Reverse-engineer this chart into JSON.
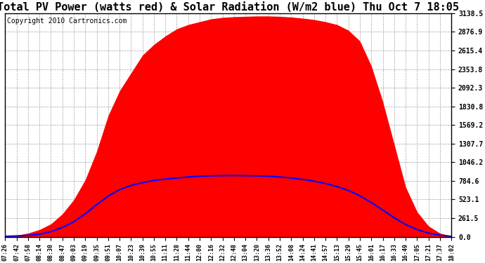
{
  "title": "Total PV Power (watts red) & Solar Radiation (W/m2 blue) Thu Oct 7 18:05",
  "copyright": "Copyright 2010 Cartronics.com",
  "ymax": 3138.5,
  "ymin": 0.0,
  "yticks": [
    0.0,
    261.5,
    523.1,
    784.6,
    1046.2,
    1307.7,
    1569.2,
    1830.8,
    2092.3,
    2353.8,
    2615.4,
    2876.9,
    3138.5
  ],
  "ytick_labels": [
    "0.0",
    "261.5",
    "523.1",
    "784.6",
    "1046.2",
    "1307.7",
    "1569.2",
    "1830.8",
    "2092.3",
    "2353.8",
    "2615.4",
    "2876.9",
    "3138.5"
  ],
  "xtick_labels": [
    "07:26",
    "07:42",
    "07:58",
    "08:14",
    "08:30",
    "08:47",
    "09:03",
    "09:19",
    "09:35",
    "09:51",
    "10:07",
    "10:23",
    "10:39",
    "10:55",
    "11:11",
    "11:28",
    "11:44",
    "12:00",
    "12:16",
    "12:32",
    "12:48",
    "13:04",
    "13:20",
    "13:36",
    "13:52",
    "14:08",
    "14:24",
    "14:41",
    "14:57",
    "15:13",
    "15:29",
    "15:45",
    "16:01",
    "16:17",
    "16:33",
    "16:49",
    "17:05",
    "17:21",
    "17:37",
    "18:02"
  ],
  "pv_color": "#FF0000",
  "solar_color": "#0000FF",
  "bg_color": "#FFFFFF",
  "grid_color": "#AAAAAA",
  "title_fontsize": 11,
  "copyright_fontsize": 7,
  "pv_values": [
    10,
    20,
    50,
    100,
    180,
    320,
    520,
    800,
    1200,
    1700,
    2050,
    2300,
    2550,
    2700,
    2820,
    2920,
    2980,
    3020,
    3060,
    3080,
    3090,
    3095,
    3100,
    3100,
    3095,
    3085,
    3070,
    3050,
    3020,
    2980,
    2900,
    2750,
    2400,
    1900,
    1300,
    700,
    350,
    150,
    50,
    10
  ],
  "solar_values": [
    5,
    10,
    18,
    35,
    70,
    130,
    210,
    320,
    450,
    570,
    660,
    720,
    760,
    790,
    810,
    825,
    840,
    850,
    855,
    858,
    860,
    858,
    855,
    850,
    840,
    825,
    805,
    780,
    748,
    705,
    650,
    575,
    480,
    375,
    265,
    170,
    100,
    50,
    20,
    5
  ],
  "figwidth": 6.9,
  "figheight": 3.75,
  "dpi": 100
}
